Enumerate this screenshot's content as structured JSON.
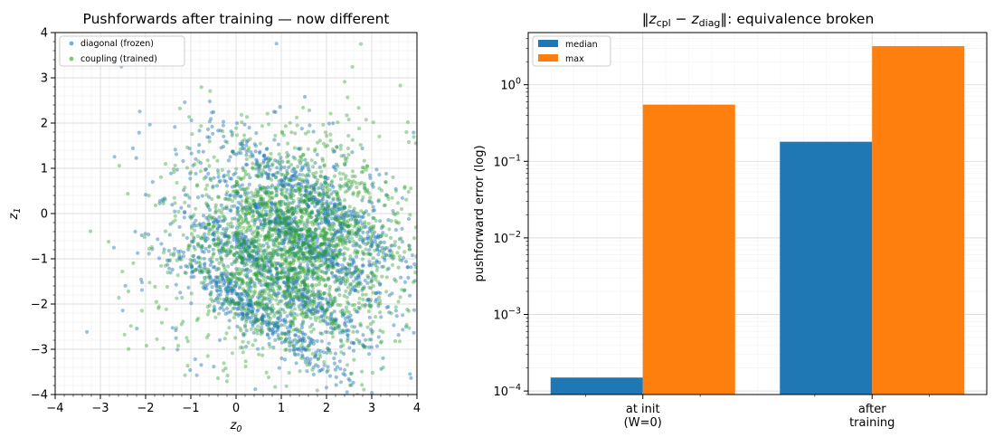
{
  "chart_data": [
    {
      "type": "scatter",
      "title": "Pushforwards after training — now different",
      "xlabel": "z",
      "xlabel_sub": "0",
      "ylabel": "z",
      "ylabel_sub": "1",
      "xlim": [
        -4,
        4
      ],
      "ylim": [
        -4,
        4
      ],
      "xticks": [
        -4,
        -3,
        -2,
        -1,
        0,
        1,
        2,
        3,
        4
      ],
      "yticks": [
        -4,
        -3,
        -2,
        -1,
        0,
        1,
        2,
        3,
        4
      ],
      "grid": true,
      "legend_position": "top-left",
      "series": [
        {
          "name": "diagonal (frozen)",
          "color": "#1f77b4",
          "description": "dense cloud with diagonal bands running from upper-left to lower-right",
          "sample_points": [
            [
              -1.5,
              2.2
            ],
            [
              -1.0,
              1.8
            ],
            [
              -0.5,
              1.2
            ],
            [
              0.0,
              0.8
            ],
            [
              0.5,
              0.3
            ],
            [
              1.0,
              -0.2
            ],
            [
              1.5,
              -0.7
            ],
            [
              -1.8,
              0.8
            ],
            [
              -1.2,
              0.4
            ],
            [
              -0.6,
              -0.1
            ],
            [
              0.0,
              -0.5
            ],
            [
              0.6,
              -1.0
            ],
            [
              1.2,
              -1.6
            ],
            [
              -1.5,
              -0.6
            ],
            [
              -0.9,
              -1.2
            ],
            [
              -0.3,
              -1.6
            ],
            [
              0.3,
              -2.1
            ],
            [
              1.6,
              -2.2
            ],
            [
              2.0,
              0.4
            ],
            [
              2.6,
              0.6
            ],
            [
              -2.6,
              -0.2
            ],
            [
              -3.3,
              -0.8
            ],
            [
              3.2,
              1.0
            ],
            [
              3.8,
              0.1
            ],
            [
              0.3,
              3.3
            ],
            [
              -1.8,
              3.2
            ],
            [
              2.1,
              1.6
            ],
            [
              -0.6,
              2.0
            ],
            [
              -2.2,
              0.1
            ],
            [
              0.8,
              1.1
            ]
          ]
        },
        {
          "name": "coupling (trained)",
          "color": "#2ca02c",
          "description": "broader roughly isotropic cloud centred near the origin",
          "sample_points": [
            [
              -0.5,
              0.3
            ],
            [
              0.2,
              0.5
            ],
            [
              -0.3,
              -0.2
            ],
            [
              0.6,
              -0.5
            ],
            [
              -1.0,
              1.0
            ],
            [
              1.0,
              1.2
            ],
            [
              -1.6,
              -0.9
            ],
            [
              1.4,
              -1.3
            ],
            [
              0.0,
              1.8
            ],
            [
              0.2,
              -1.9
            ],
            [
              -2.2,
              0.4
            ],
            [
              2.3,
              0.7
            ],
            [
              -2.6,
              1.7
            ],
            [
              2.7,
              -0.8
            ],
            [
              -1.3,
              2.5
            ],
            [
              1.5,
              2.6
            ],
            [
              -2.5,
              -2.2
            ],
            [
              2.3,
              -2.1
            ],
            [
              -3.0,
              0.9
            ],
            [
              3.1,
              1.9
            ],
            [
              0.4,
              3.0
            ],
            [
              -0.5,
              -2.9
            ],
            [
              3.6,
              -0.5
            ],
            [
              -3.6,
              -1.0
            ],
            [
              0.3,
              -3.7
            ],
            [
              -1.1,
              2.9
            ],
            [
              1.8,
              -2.8
            ],
            [
              -3.2,
              -2.2
            ],
            [
              2.6,
              2.3
            ],
            [
              -0.2,
              2.5
            ]
          ]
        }
      ]
    },
    {
      "type": "bar",
      "title_norm_open": "‖",
      "title_z1": "z",
      "title_z1_sub": "cpl",
      "title_minus": " − ",
      "title_z2": "z",
      "title_z2_sub": "diag",
      "title_norm_close": "‖",
      "title_suffix": ": equivalence broken",
      "xlabel": "",
      "ylabel": "pushforward error (log)",
      "yscale": "log",
      "ylim": [
        9e-05,
        4.8
      ],
      "yticks": [
        {
          "value": 0.0001,
          "base": "10",
          "exp": "−4"
        },
        {
          "value": 0.001,
          "base": "10",
          "exp": "−3"
        },
        {
          "value": 0.01,
          "base": "10",
          "exp": "−2"
        },
        {
          "value": 0.1,
          "base": "10",
          "exp": "−1"
        },
        {
          "value": 1,
          "base": "10",
          "exp": "0"
        }
      ],
      "categories": [
        [
          "at init",
          "(W=0)"
        ],
        [
          "after",
          "training"
        ]
      ],
      "grid": true,
      "legend_position": "top-left",
      "series": [
        {
          "name": "median",
          "color": "#1f77b4",
          "values": [
            0.00015,
            0.18
          ]
        },
        {
          "name": "max",
          "color": "#ff7f0e",
          "values": [
            0.55,
            3.2
          ]
        }
      ]
    }
  ]
}
